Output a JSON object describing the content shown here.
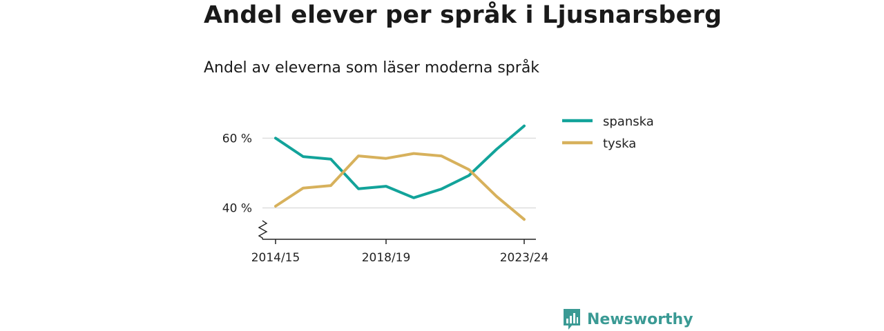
{
  "header": {
    "title": "Andel elever per språk i Ljusnarsberg",
    "subtitle": "Andel av eleverna som läser moderna språk"
  },
  "brand": {
    "name": "Newsworthy",
    "icon": "bar-chart-logo-icon",
    "color": "#3a9a94"
  },
  "chart_data": {
    "type": "line",
    "title": "Andel elever per språk i Ljusnarsberg",
    "subtitle": "Andel av eleverna som läser moderna språk",
    "x": [
      "2014/15",
      "2015/16",
      "2016/17",
      "2017/18",
      "2018/19",
      "2019/20",
      "2020/21",
      "2021/22",
      "2022/23",
      "2023/24"
    ],
    "x_tick_labels": [
      "2014/15",
      "2018/19",
      "2023/24"
    ],
    "x_tick_indices": [
      0,
      4,
      9
    ],
    "y_ticks": [
      40,
      60
    ],
    "y_tick_labels": [
      "40 %",
      "60 %"
    ],
    "ylim": [
      31,
      66
    ],
    "y_axis_break": true,
    "grid": true,
    "legend_position": "top-right",
    "series": [
      {
        "name": "spanska",
        "color": "#12a39a",
        "values": [
          60.0,
          54.7,
          54.0,
          45.5,
          46.2,
          42.9,
          45.4,
          49.3,
          56.8,
          63.5
        ]
      },
      {
        "name": "tyska",
        "color": "#d7b15c",
        "values": [
          40.5,
          45.7,
          46.4,
          54.9,
          54.2,
          55.6,
          54.9,
          51.0,
          43.3,
          36.7
        ]
      }
    ]
  }
}
